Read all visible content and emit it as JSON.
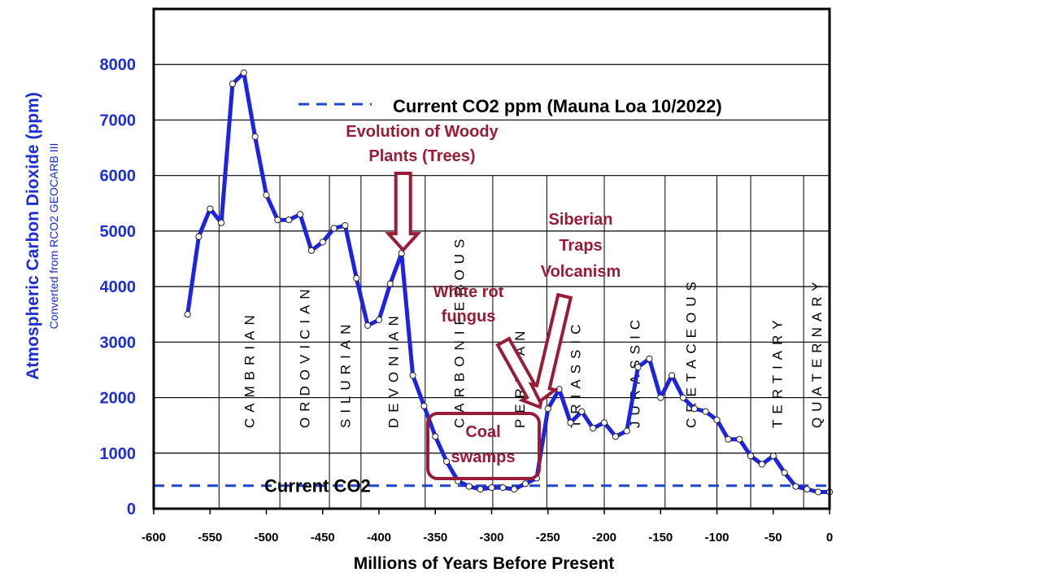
{
  "chart_data": {
    "type": "line",
    "title": "",
    "xlabel": "Millions of Years Before Present",
    "ylabel": "Atmospheric Carbon Dioxide (ppm)",
    "ylabel_sub": "Converted from RCO2 GEOCARB III",
    "xlim": [
      -600,
      0
    ],
    "ylim": [
      0,
      9000
    ],
    "x_ticks": [
      -600,
      -550,
      -500,
      -450,
      -400,
      -350,
      -300,
      -250,
      -200,
      -150,
      -100,
      -50,
      0
    ],
    "x_tick_labels": [
      "-600",
      "-550",
      "-500",
      "-450",
      "-400",
      "-350",
      "-300",
      "-250",
      "-200",
      "-150",
      "-100",
      "-50",
      "0"
    ],
    "y_ticks": [
      0,
      1000,
      2000,
      3000,
      4000,
      5000,
      6000,
      7000,
      8000
    ],
    "y_tick_labels": [
      "0",
      "1000",
      "2000",
      "3000",
      "4000",
      "5000",
      "6000",
      "7000",
      "8000"
    ],
    "grid": "horizontal",
    "series": [
      {
        "name": "GEOCARB III CO2",
        "color": "#1c24e0",
        "x": [
          -570,
          -560,
          -550,
          -540,
          -530,
          -520,
          -510,
          -500,
          -490,
          -480,
          -470,
          -460,
          -450,
          -440,
          -430,
          -420,
          -410,
          -400,
          -390,
          -380,
          -370,
          -360,
          -350,
          -340,
          -330,
          -320,
          -310,
          -300,
          -290,
          -280,
          -270,
          -260,
          -250,
          -240,
          -230,
          -220,
          -210,
          -200,
          -190,
          -180,
          -170,
          -160,
          -150,
          -140,
          -130,
          -120,
          -110,
          -100,
          -90,
          -80,
          -70,
          -60,
          -50,
          -40,
          -30,
          -20,
          -10,
          0
        ],
        "y": [
          3500,
          4900,
          5400,
          5150,
          7650,
          7850,
          6700,
          5650,
          5200,
          5200,
          5300,
          4650,
          4800,
          5050,
          5100,
          4150,
          3300,
          3400,
          4050,
          4600,
          2400,
          1850,
          1300,
          850,
          500,
          400,
          350,
          380,
          380,
          350,
          450,
          550,
          1800,
          2150,
          1550,
          1750,
          1450,
          1550,
          1300,
          1400,
          2550,
          2700,
          2000,
          2400,
          2000,
          1800,
          1750,
          1600,
          1250,
          1250,
          950,
          800,
          950,
          650,
          400,
          350,
          300,
          300
        ]
      }
    ],
    "current_co2": {
      "value": 415,
      "color": "#1c47d6",
      "label": "Current CO2"
    },
    "legend": {
      "entry": "Current CO2 ppm (Mauna Loa 10/2022)",
      "placement": "top-center"
    },
    "periods": [
      {
        "name": "CAMBRIAN",
        "start": -542,
        "end": -488
      },
      {
        "name": "ORDOVICIAN",
        "start": -488,
        "end": -444
      },
      {
        "name": "SILURIAN",
        "start": -444,
        "end": -416
      },
      {
        "name": "DEVONIAN",
        "start": -416,
        "end": -359
      },
      {
        "name": "CARBONIFEROUS",
        "start": -359,
        "end": -299
      },
      {
        "name": "PERMIAN",
        "start": -299,
        "end": -251
      },
      {
        "name": "TRIASSIC",
        "start": -251,
        "end": -200
      },
      {
        "name": "JURASSIC",
        "start": -200,
        "end": -146
      },
      {
        "name": "CRETACEOUS",
        "start": -146,
        "end": -100
      },
      {
        "name": "TERTIARY",
        "start": -70,
        "end": -23
      },
      {
        "name": "QUATERNARY",
        "start": -23,
        "end": 0
      }
    ],
    "annotations": [
      {
        "lines": [
          "Evolution of Woody",
          "Plants (Trees)"
        ],
        "color": "#9a1b36",
        "arrow_to": [
          -380,
          4600
        ]
      },
      {
        "lines": [
          "White rot",
          "fungus"
        ],
        "color": "#9a1b36",
        "arrow_to": [
          -260,
          1800
        ]
      },
      {
        "lines": [
          "Siberian",
          "Traps",
          "Volcanism"
        ],
        "color": "#9a1b36",
        "arrow_to": [
          -250,
          2300
        ]
      },
      {
        "lines": [
          "Coal",
          "swamps"
        ],
        "color": "#9a1b36",
        "boxed": true
      }
    ]
  }
}
